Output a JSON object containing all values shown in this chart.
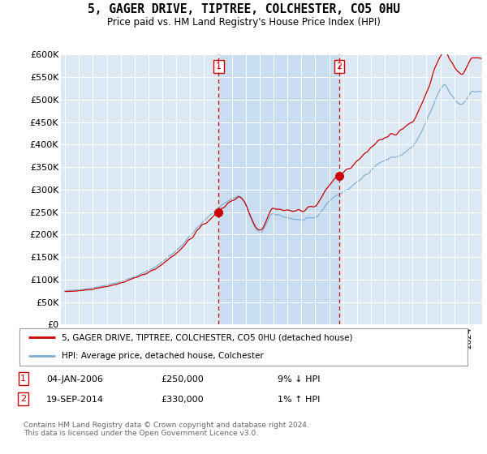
{
  "title": "5, GAGER DRIVE, TIPTREE, COLCHESTER, CO5 0HU",
  "subtitle": "Price paid vs. HM Land Registry's House Price Index (HPI)",
  "plot_bg_color": "#dce9f5",
  "highlight_bg_color": "#c8ddf0",
  "red_line_color": "#cc0000",
  "blue_line_color": "#7bafd4",
  "transaction1": {
    "date": "04-JAN-2006",
    "price": 250000,
    "pct": "9%",
    "dir": "↓"
  },
  "transaction2": {
    "date": "19-SEP-2014",
    "price": 330000,
    "pct": "1%",
    "dir": "↑"
  },
  "legend_label_red": "5, GAGER DRIVE, TIPTREE, COLCHESTER, CO5 0HU (detached house)",
  "legend_label_blue": "HPI: Average price, detached house, Colchester",
  "footer": "Contains HM Land Registry data © Crown copyright and database right 2024.\nThis data is licensed under the Open Government Licence v3.0.",
  "sale1_x": 2006.04,
  "sale1_y": 250000,
  "sale2_x": 2014.72,
  "sale2_y": 330000,
  "ylim": [
    0,
    600000
  ],
  "yticks": [
    0,
    50000,
    100000,
    150000,
    200000,
    250000,
    300000,
    350000,
    400000,
    450000,
    500000,
    550000,
    600000
  ],
  "xlim_start": 1994.7,
  "xlim_end": 2025.0
}
